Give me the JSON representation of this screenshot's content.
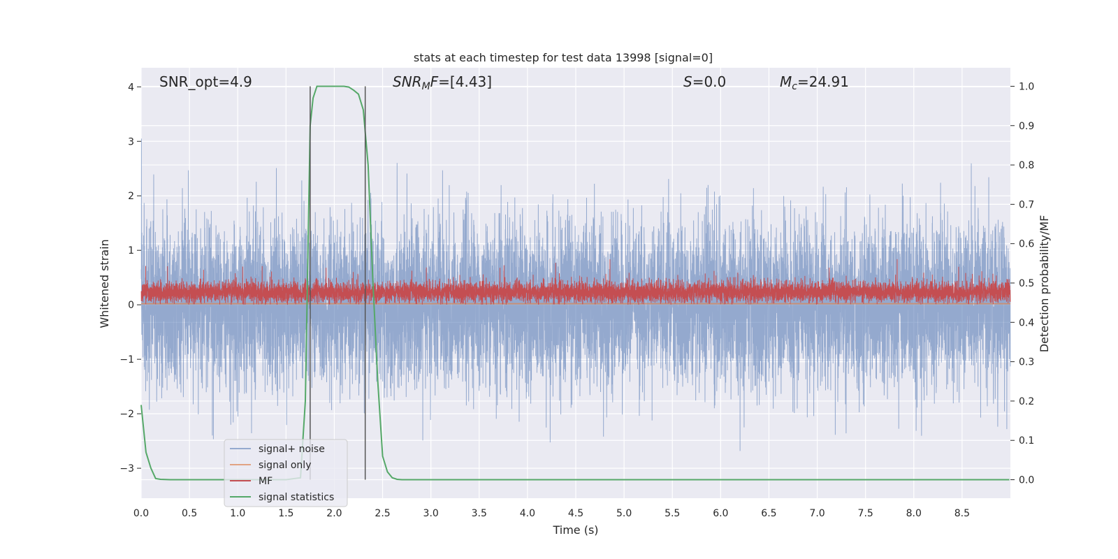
{
  "chart_data": {
    "type": "line",
    "title": "stats at each timestep for test data 13998 [signal=0]",
    "xlabel": "Time (s)",
    "ylabel": "Whitened strain",
    "y2label": "Detection probability/MF",
    "xlim": [
      0,
      9.0
    ],
    "ylim": [
      -3.55,
      4.35
    ],
    "y2lim": [
      -0.047,
      1.047
    ],
    "grid": true,
    "x_ticks": [
      "0.0",
      "0.5",
      "1.0",
      "1.5",
      "2.0",
      "2.5",
      "3.0",
      "3.5",
      "4.0",
      "4.5",
      "5.0",
      "5.5",
      "6.0",
      "6.5",
      "7.0",
      "7.5",
      "8.0",
      "8.5"
    ],
    "x_tick_values": [
      0,
      0.5,
      1,
      1.5,
      2,
      2.5,
      3,
      3.5,
      4,
      4.5,
      5,
      5.5,
      6,
      6.5,
      7,
      7.5,
      8,
      8.5
    ],
    "y_ticks": [
      "−3",
      "−2",
      "−1",
      "0",
      "1",
      "2",
      "3",
      "4"
    ],
    "y_tick_values": [
      -3,
      -2,
      -1,
      0,
      1,
      2,
      3,
      4
    ],
    "y2_ticks": [
      "0.0",
      "0.1",
      "0.2",
      "0.3",
      "0.4",
      "0.5",
      "0.6",
      "0.7",
      "0.8",
      "0.9",
      "1.0"
    ],
    "y2_tick_values": [
      0,
      0.1,
      0.2,
      0.3,
      0.4,
      0.5,
      0.6,
      0.7,
      0.8,
      0.9,
      1.0
    ],
    "annotations": {
      "snr_opt": "SNR_opt=4.9",
      "snr_mf_label": "SNR",
      "snr_mf_sub": "M",
      "snr_mf_f": "F",
      "snr_mf_value": "=[4.43]",
      "s_label": "S",
      "s_value": "=0.0",
      "mc_label": "M",
      "mc_sub": "c",
      "mc_value": "=24.91"
    },
    "vlines": [
      1.75,
      2.32
    ],
    "noise": {
      "count": 9000,
      "seed": 13998,
      "sigma": 0.75,
      "clip": [
        -3.3,
        4.0
      ]
    },
    "mf": {
      "count": 9000,
      "seed": 777,
      "base": 0.23,
      "sigma": 0.1,
      "y2_range": [
        0.45,
        0.5
      ]
    },
    "signal_only_level": 0.02,
    "series": [
      {
        "name": "signal+ noise",
        "color": "#4c72b0",
        "opacity": 0.55
      },
      {
        "name": "signal only",
        "color": "#dd8452",
        "opacity": 0.7
      },
      {
        "name": "MF",
        "color": "#c44e52",
        "opacity": 1.0
      },
      {
        "name": "signal statistics",
        "color": "#55a868",
        "x": [
          0.0,
          0.05,
          0.1,
          0.15,
          0.2,
          0.3,
          0.5,
          1.0,
          1.5,
          1.65,
          1.7,
          1.75,
          1.78,
          1.82,
          1.9,
          2.0,
          2.1,
          2.15,
          2.2,
          2.25,
          2.3,
          2.35,
          2.4,
          2.45,
          2.5,
          2.55,
          2.6,
          2.65,
          2.7,
          3.0,
          5.0,
          8.99
        ],
        "values": [
          0.19,
          0.07,
          0.03,
          0.003,
          0.001,
          0.0,
          0.0,
          0.0,
          0.0,
          0.005,
          0.2,
          0.9,
          0.97,
          1.0,
          1.0,
          1.0,
          1.0,
          0.998,
          0.99,
          0.98,
          0.94,
          0.8,
          0.5,
          0.25,
          0.06,
          0.02,
          0.005,
          0.001,
          0.0,
          0.0,
          0.0,
          0.0
        ]
      }
    ],
    "legend_location": "lower-left"
  }
}
